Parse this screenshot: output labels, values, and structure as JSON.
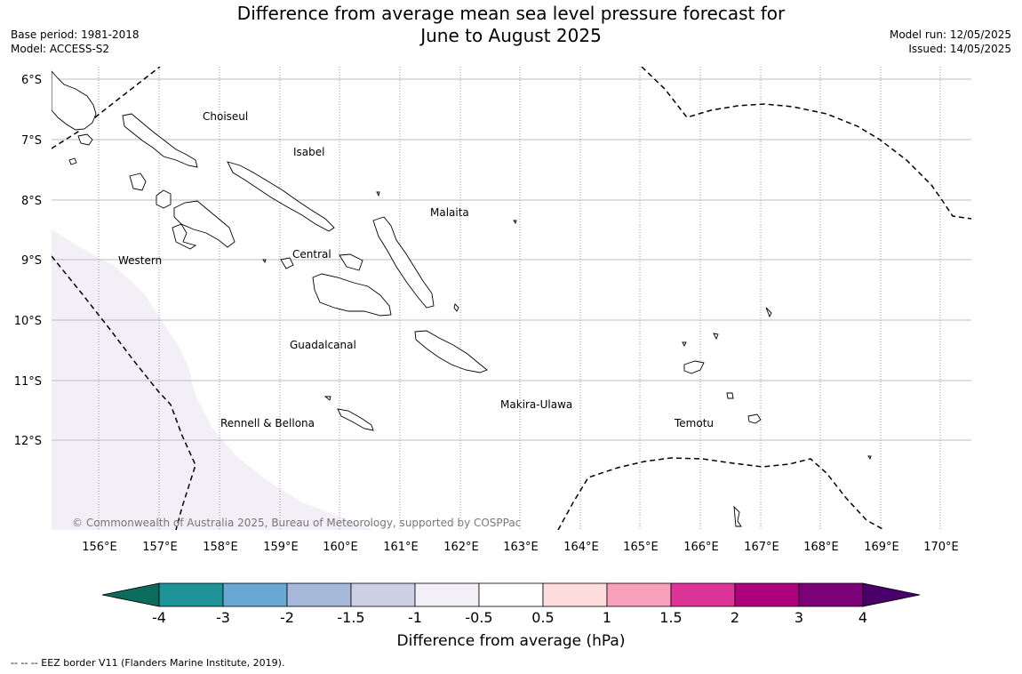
{
  "title": {
    "line1": "Difference from average mean sea level pressure forecast for",
    "line2": "June to August 2025"
  },
  "meta": {
    "base_period": "Base period: 1981-2018",
    "model": "Model: ACCESS-S2",
    "model_run": "Model run: 12/05/2025",
    "issued": "Issued: 14/05/2025"
  },
  "map": {
    "lat_labels": [
      "6°S",
      "7°S",
      "8°S",
      "9°S",
      "10°S",
      "11°S",
      "12°S"
    ],
    "lon_labels": [
      "156°E",
      "157°E",
      "158°E",
      "159°E",
      "160°E",
      "161°E",
      "162°E",
      "163°E",
      "164°E",
      "165°E",
      "166°E",
      "167°E",
      "168°E",
      "169°E",
      "170°E"
    ],
    "regions": {
      "choiseul": "Choiseul",
      "isabel": "Isabel",
      "malaita": "Malaita",
      "western": "Western",
      "central": "Central",
      "guadalcanal": "Guadalcanal",
      "makira": "Makira-Ulawa",
      "rennell": "Rennell & Bellona",
      "temotu": "Temotu"
    },
    "anomaly_shading": [
      {
        "area": "south-west corner",
        "category": "-1 to -0.5",
        "color": "#f3eff6"
      }
    ],
    "copyright": "© Commonwealth of Australia 2025, Bureau of Meteorology, supported by COSPPac"
  },
  "colorbar": {
    "ticks": [
      "-4",
      "-3",
      "-2",
      "-1.5",
      "-1",
      "-0.5",
      "0.5",
      "1",
      "1.5",
      "2",
      "3",
      "4"
    ],
    "colors": [
      "#0b6b5c",
      "#1f9398",
      "#68a8d3",
      "#a7b9da",
      "#cdd0e5",
      "#f3eff6",
      "#ffffff",
      "#fedddc",
      "#f9a1bc",
      "#dd3497",
      "#ae017e",
      "#7a0177",
      "#49006a"
    ],
    "label": "Difference from average (hPa)"
  },
  "footnote": "--  --  -- EEZ border V11 (Flanders Marine Institute, 2019)."
}
